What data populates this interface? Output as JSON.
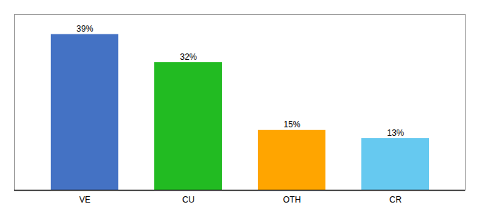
{
  "chart_data": {
    "type": "bar",
    "categories": [
      "VE",
      "CU",
      "OTH",
      "CR"
    ],
    "values": [
      39,
      32,
      15,
      13
    ],
    "value_labels": [
      "39%",
      "32%",
      "15%",
      "13%"
    ],
    "colors": [
      "#4472c4",
      "#22bb22",
      "#ffa500",
      "#66c9f0"
    ],
    "ylim": [
      0,
      44
    ],
    "data_labels": true,
    "tick_labels": "x",
    "grid": false
  }
}
